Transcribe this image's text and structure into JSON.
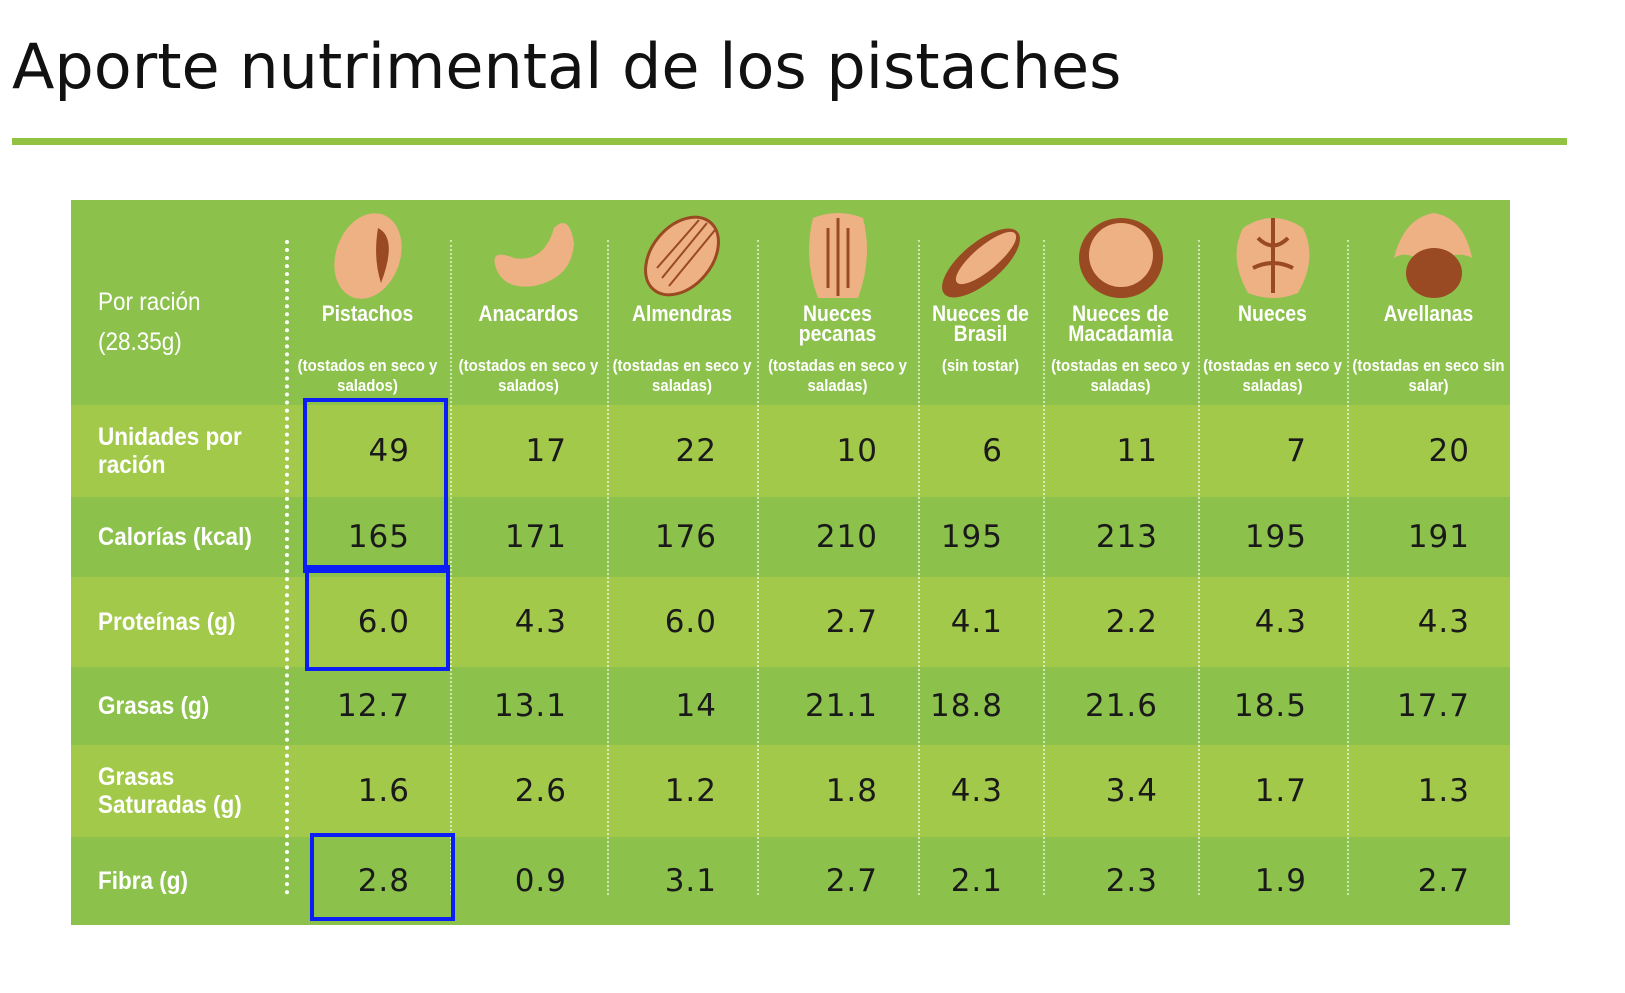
{
  "title": "Aporte nutrimental de los pistaches",
  "header_label": [
    "Por ración",
    "(28.35g)"
  ],
  "columns": [
    {
      "name": "Pistachos",
      "note": "(tostados en seco y salados)",
      "icon": "pistachio-icon"
    },
    {
      "name": "Anacardos",
      "note": "(tostados en seco y salados)",
      "icon": "cashew-icon"
    },
    {
      "name": "Almendras",
      "note": "(tostadas en seco y saladas)",
      "icon": "almond-icon"
    },
    {
      "name": "Nueces pecanas",
      "note": "(tostadas en seco y saladas)",
      "icon": "pecan-icon"
    },
    {
      "name": "Nueces de Brasil",
      "note": "(sin tostar)",
      "icon": "brazil-nut-icon"
    },
    {
      "name": "Nueces de Macadamia",
      "note": "(tostadas en seco y saladas)",
      "icon": "macadamia-icon"
    },
    {
      "name": "Nueces",
      "note": "(tostadas en seco y saladas)",
      "icon": "walnut-icon"
    },
    {
      "name": "Avellanas",
      "note": "(tostadas en seco sin salar)",
      "icon": "hazelnut-icon"
    }
  ],
  "rows": [
    {
      "label": "Unidades por ración",
      "values": [
        "49",
        "17",
        "22",
        "10",
        "6",
        "11",
        "7",
        "20"
      ]
    },
    {
      "label": "Calorías (kcal)",
      "values": [
        "165",
        "171",
        "176",
        "210",
        "195",
        "213",
        "195",
        "191"
      ]
    },
    {
      "label": "Proteínas (g)",
      "values": [
        "6.0",
        "4.3",
        "6.0",
        "2.7",
        "4.1",
        "2.2",
        "4.3",
        "4.3"
      ]
    },
    {
      "label": "Grasas (g)",
      "values": [
        "12.7",
        "13.1",
        "14",
        "21.1",
        "18.8",
        "21.6",
        "18.5",
        "17.7"
      ]
    },
    {
      "label": "Grasas Saturadas (g)",
      "values": [
        "1.6",
        "2.6",
        "1.2",
        "1.8",
        "4.3",
        "3.4",
        "1.7",
        "1.3"
      ]
    },
    {
      "label": "Fibra (g)",
      "values": [
        "2.8",
        "0.9",
        "3.1",
        "2.7",
        "2.1",
        "2.3",
        "1.9",
        "2.7"
      ]
    }
  ],
  "colors": {
    "accent_line": "#92c241",
    "row_dark": "#8cc14c",
    "row_light": "#a3c94b",
    "highlight": "#0a1ef5",
    "nut_light": "#eeb184",
    "nut_dark": "#9a4a22"
  }
}
